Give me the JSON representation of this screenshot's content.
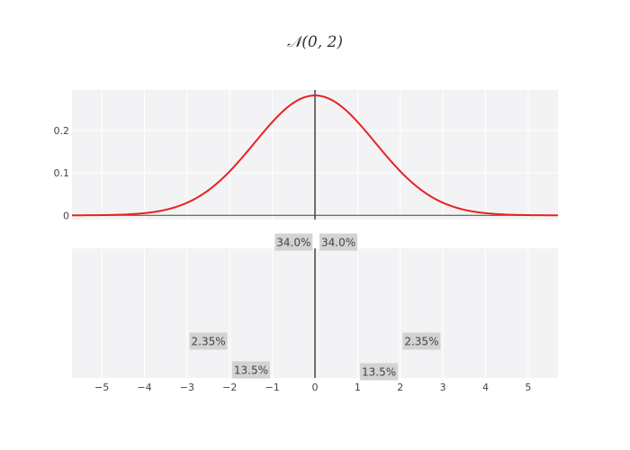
{
  "chart_data": [
    {
      "type": "line",
      "title": "𝒩(0, 2)",
      "xlabel": "",
      "ylabel": "",
      "xlim": [
        -5.7,
        5.7
      ],
      "ylim": [
        -0.01,
        0.295
      ],
      "y_ticks": [
        0,
        0.1,
        0.2
      ],
      "grid": true,
      "series": [
        {
          "color": "#e8221f",
          "distribution": "normal",
          "mean": 0,
          "sd": 1.414
        }
      ],
      "vertical_line_x": 0
    },
    {
      "type": "annotation",
      "xlabel": "",
      "xlim": [
        -5.7,
        5.7
      ],
      "x_ticks": [
        -5,
        -4,
        -3,
        -2,
        -1,
        0,
        1,
        2,
        3,
        4,
        5
      ],
      "x_tick_labels": [
        "−5",
        "−4",
        "−3",
        "−2",
        "−1",
        "0",
        "1",
        "2",
        "3",
        "4",
        "5"
      ],
      "grid": true,
      "annotations": [
        {
          "text": "34.0%",
          "x": -0.5,
          "level": "top"
        },
        {
          "text": "34.0%",
          "x": 0.55,
          "level": "top"
        },
        {
          "text": "2.35%",
          "x": -2.5,
          "level": "middle"
        },
        {
          "text": "2.35%",
          "x": 2.5,
          "level": "middle"
        },
        {
          "text": "13.5%",
          "x": -1.5,
          "level": "bottom"
        },
        {
          "text": "13.5%",
          "x": 1.5,
          "level": "lowest"
        }
      ]
    }
  ],
  "colors": {
    "plot_bg": "#f3f3f5",
    "grid": "#ffffff",
    "curve": "#e8221f",
    "axis": "#444444",
    "annotation_bg": "#d3d3d3"
  }
}
